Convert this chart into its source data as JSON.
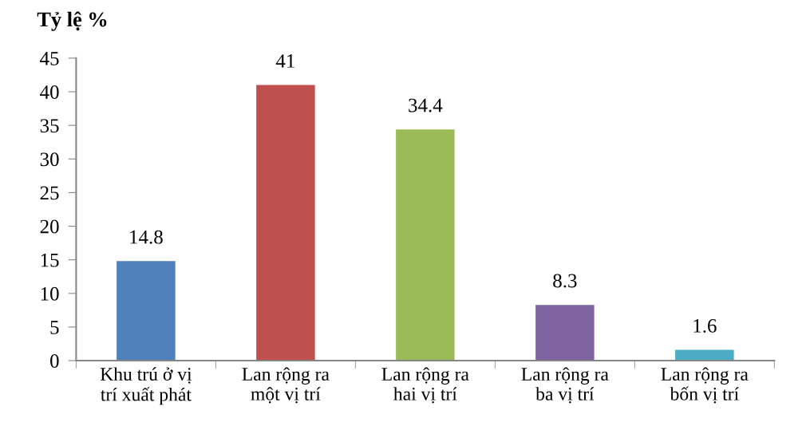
{
  "chart_data": {
    "type": "bar",
    "ylabel": "Tỷ lệ %",
    "categories": [
      "Khu trú ở vị\ntrí xuất phát",
      "Lan rộng ra\nmột vị trí",
      "Lan rộng ra\nhai vị trí",
      "Lan rộng ra\nba vị trí",
      "Lan rộng ra\nbốn vị trí"
    ],
    "values": [
      14.8,
      41,
      34.4,
      8.3,
      1.6
    ],
    "colors": [
      "#4f81bd",
      "#c0504d",
      "#9bbb59",
      "#8064a2",
      "#4bacc6"
    ],
    "ylim": [
      0,
      45
    ],
    "yticks": [
      0,
      5,
      10,
      15,
      20,
      25,
      30,
      35,
      40,
      45
    ],
    "data_labels": true,
    "grid": false,
    "legend": false
  }
}
